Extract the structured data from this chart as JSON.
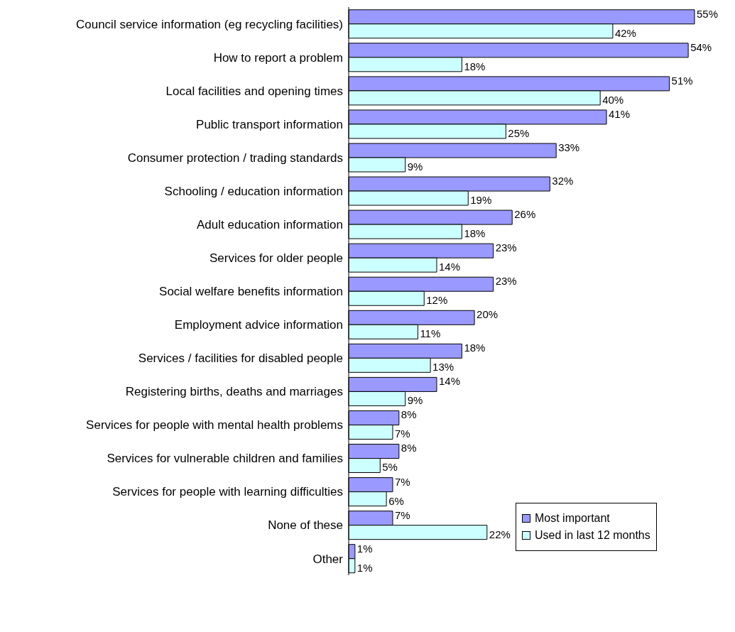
{
  "chart_data": {
    "type": "bar",
    "orientation": "horizontal",
    "categories": [
      "Council service information (eg recycling facilities)",
      "How to report a problem",
      "Local facilities and opening times ",
      "Public transport information",
      "Consumer protection / trading standards",
      "Schooling / education information",
      "Adult education information",
      "Services for older people ",
      "Social welfare benefits information",
      "Employment advice information",
      "Services / facilities for disabled people",
      "Registering births, deaths and marriages",
      "Services for people with mental health problems",
      "Services for vulnerable children and families",
      "Services for people with learning difficulties",
      "None of these",
      "Other"
    ],
    "series": [
      {
        "name": "Most important",
        "color": "#9999ff",
        "values": [
          55,
          54,
          51,
          41,
          33,
          32,
          26,
          23,
          23,
          20,
          18,
          14,
          8,
          8,
          7,
          7,
          1
        ],
        "value_labels": [
          "55%",
          "54%",
          "51%",
          "41%",
          "33%",
          "32%",
          "26%",
          "23%",
          "23%",
          "20%",
          "18%",
          "14%",
          "8%",
          "8%",
          "7%",
          "7%",
          "1%"
        ]
      },
      {
        "name": "Used in last 12 months",
        "color": "#ccffff",
        "values": [
          42,
          18,
          40,
          25,
          9,
          19,
          18,
          14,
          12,
          11,
          13,
          9,
          7,
          5,
          6,
          22,
          1
        ],
        "value_labels": [
          "42%",
          "18%",
          "40%",
          "25%",
          "9%",
          "19%",
          "18%",
          "14%",
          "12%",
          "11%",
          "13%",
          "9%",
          "7%",
          "5%",
          "6%",
          "22%",
          "1%"
        ]
      }
    ],
    "legend": "bottom right"
  }
}
